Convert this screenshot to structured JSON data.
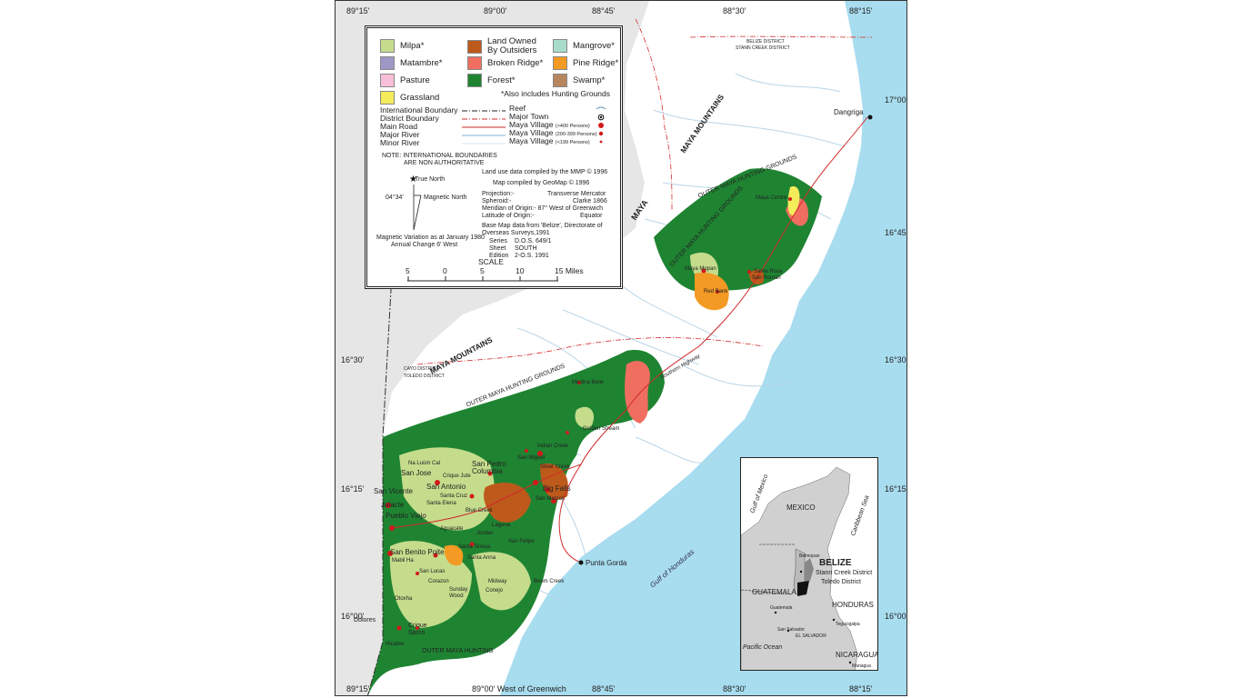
{
  "ticks": {
    "top": [
      "89°15'",
      "89°00'",
      "88°45'",
      "88°30'",
      "88°15'"
    ],
    "bottom": [
      "89°15'",
      "89°00' West of Greenwich",
      "88°45'",
      "88°30'",
      "88°15'"
    ],
    "right": [
      "17°00'",
      "16°45'",
      "16°30'",
      "16°15'",
      "16°00'"
    ],
    "left": [
      "17°00'",
      "16°45'",
      "16°30'",
      "16°15'",
      "16°00'"
    ]
  },
  "legend": {
    "landuse": [
      {
        "label": "Milpa*",
        "color": "#c5dc8c"
      },
      {
        "label": "Matambre*",
        "color": "#9e98c7"
      },
      {
        "label": "Pasture",
        "color": "#f7bfd8"
      },
      {
        "label": "Grassland",
        "color": "#f4ec5a"
      },
      {
        "label": "Land Owned",
        "label2": "By Outsiders",
        "color": "#bd5a1b"
      },
      {
        "label": "Broken Ridge*",
        "color": "#ef6e60"
      },
      {
        "label": "Forest*",
        "color": "#1f8432"
      },
      {
        "label": "Mangrove*",
        "color": "#a8dccb"
      },
      {
        "label": "Pine Ridge*",
        "color": "#f39a24"
      },
      {
        "label": "Swamp*",
        "color": "#b8865c"
      }
    ],
    "footnote": "*Also includes Hunting Grounds",
    "lines": [
      "International Boundary",
      "District Boundary",
      "Main Road",
      "Major River",
      "Minor River"
    ],
    "points": [
      "Reef",
      "Major Town",
      "Maya Village",
      "Maya Village",
      "Maya Village"
    ],
    "point_notes": [
      "(>400 Persons)",
      "(200-399 Persons)",
      "(<199 Persons)"
    ],
    "note1": "NOTE: INTERNATIONAL BOUNDARIES",
    "note2": "ARE NON AUTHORITATIVE",
    "true_north": "True North",
    "magnetic_north": "Magnetic North",
    "declination": "04°34'",
    "mag1": "Magnetic Variation as at January 1980",
    "mag2": "Annual Change 6' West",
    "credit1": "Land use data compiled by the MMP © 1996",
    "credit2": "Map compiled by GeoMap © 1996",
    "proj_l": [
      "Projection:-",
      "Spheroid:-",
      "Meridian of Origin:- 87° West of Greenwich",
      "Latitude of Origin:-"
    ],
    "proj_r": [
      "Transverse Mercator",
      "Clarke 1866",
      "",
      "Equator"
    ],
    "base1": "Base Map data from 'Belize', Directorate of",
    "base2": "Overseas Surveys,1991",
    "series": [
      "Series",
      "Sheet",
      "Edition"
    ],
    "series_v": [
      "D.O.S. 649/1",
      "SOUTH",
      "2-O.S. 1991"
    ],
    "scale_title": "SCALE",
    "scale_ticks": [
      "5",
      "0",
      "5",
      "10",
      "15 Miles"
    ]
  },
  "labels": {
    "maya_mountains_n": "MAYA MOUNTAINS",
    "maya_mountains_s": "MAYA MOUNTAINS",
    "maya_word": "MAYA",
    "omhg_n": "OUTER MAYA HUNTING GROUNDS",
    "omhg_n2": "OUTER MAYA HUNTING GROUNDS",
    "omhg_s": "OUTER MAYA HUNTING GROUNDS",
    "omhg_bottom": "OUTER MAYA HUNTING",
    "belize_district": "BELIZE DISTRICT",
    "stann_creek_district": "STANN CREEK DISTRICT",
    "cayo_district": "CAYO DISTRICT",
    "toledo_district": "TOLEDO DISTRICT",
    "gulf_honduras": "Gulf of Honduras",
    "southern_highway": "Southern Highway"
  },
  "towns": {
    "dangriga": "Dangriga",
    "punta_gorda": "Punta Gorda"
  },
  "villages": [
    "Maya Centre",
    "Maya Mopan",
    "Santa Rosa",
    "San Roman",
    "Red Bank",
    "Medina Bank",
    "Golden Stream",
    "Indian Creek",
    "San Miguel",
    "Silver Creek",
    "Na Luùm Cal",
    "San Jose",
    "Crique Jute",
    "San Pedro Columbia",
    "San Antonio",
    "San Vicente",
    "Santa Cruz",
    "Big Falls",
    "Jalacte",
    "Santa Elena",
    "San Marcos",
    "Pueblo Viejo",
    "Blue Creek",
    "Laguna",
    "Aguacate",
    "Jordan",
    "San Benito Poite",
    "Santa Teresa",
    "San Felipe",
    "Mabil Ha",
    "Santa Anna",
    "San Lucas",
    "Corazon",
    "Sunday Wood",
    "Midway",
    "Conejo",
    "Boom Creek",
    "Otoxha",
    "Dolores",
    "Crique Sarco",
    "Hicatee"
  ],
  "inset": {
    "mexico": "MEXICO",
    "belize": "BELIZE",
    "stann": "Stann Creek District",
    "toledo": "Toledo District",
    "guatemala": "GUATEMALA",
    "honduras": "HONDURAS",
    "el_salvador": "EL SALVADOR",
    "nicaragua": "NICARAGUA",
    "gulf_mexico": "Gulf of Mexico",
    "caribbean": "Caribbean Sea",
    "pacific": "Pacific Ocean",
    "belmopan": "Belmopan",
    "guatemala_city": "Guatemala",
    "san_salvador": "San Salvador",
    "tegucigalpa": "Tegucigalpa",
    "managua": "Managua"
  },
  "colors": {
    "sea": "#a8dcef",
    "land": "#ffffff",
    "outside": "#e6e6e6",
    "river": "#b9d6e8",
    "boundary": "#d12a2a"
  }
}
